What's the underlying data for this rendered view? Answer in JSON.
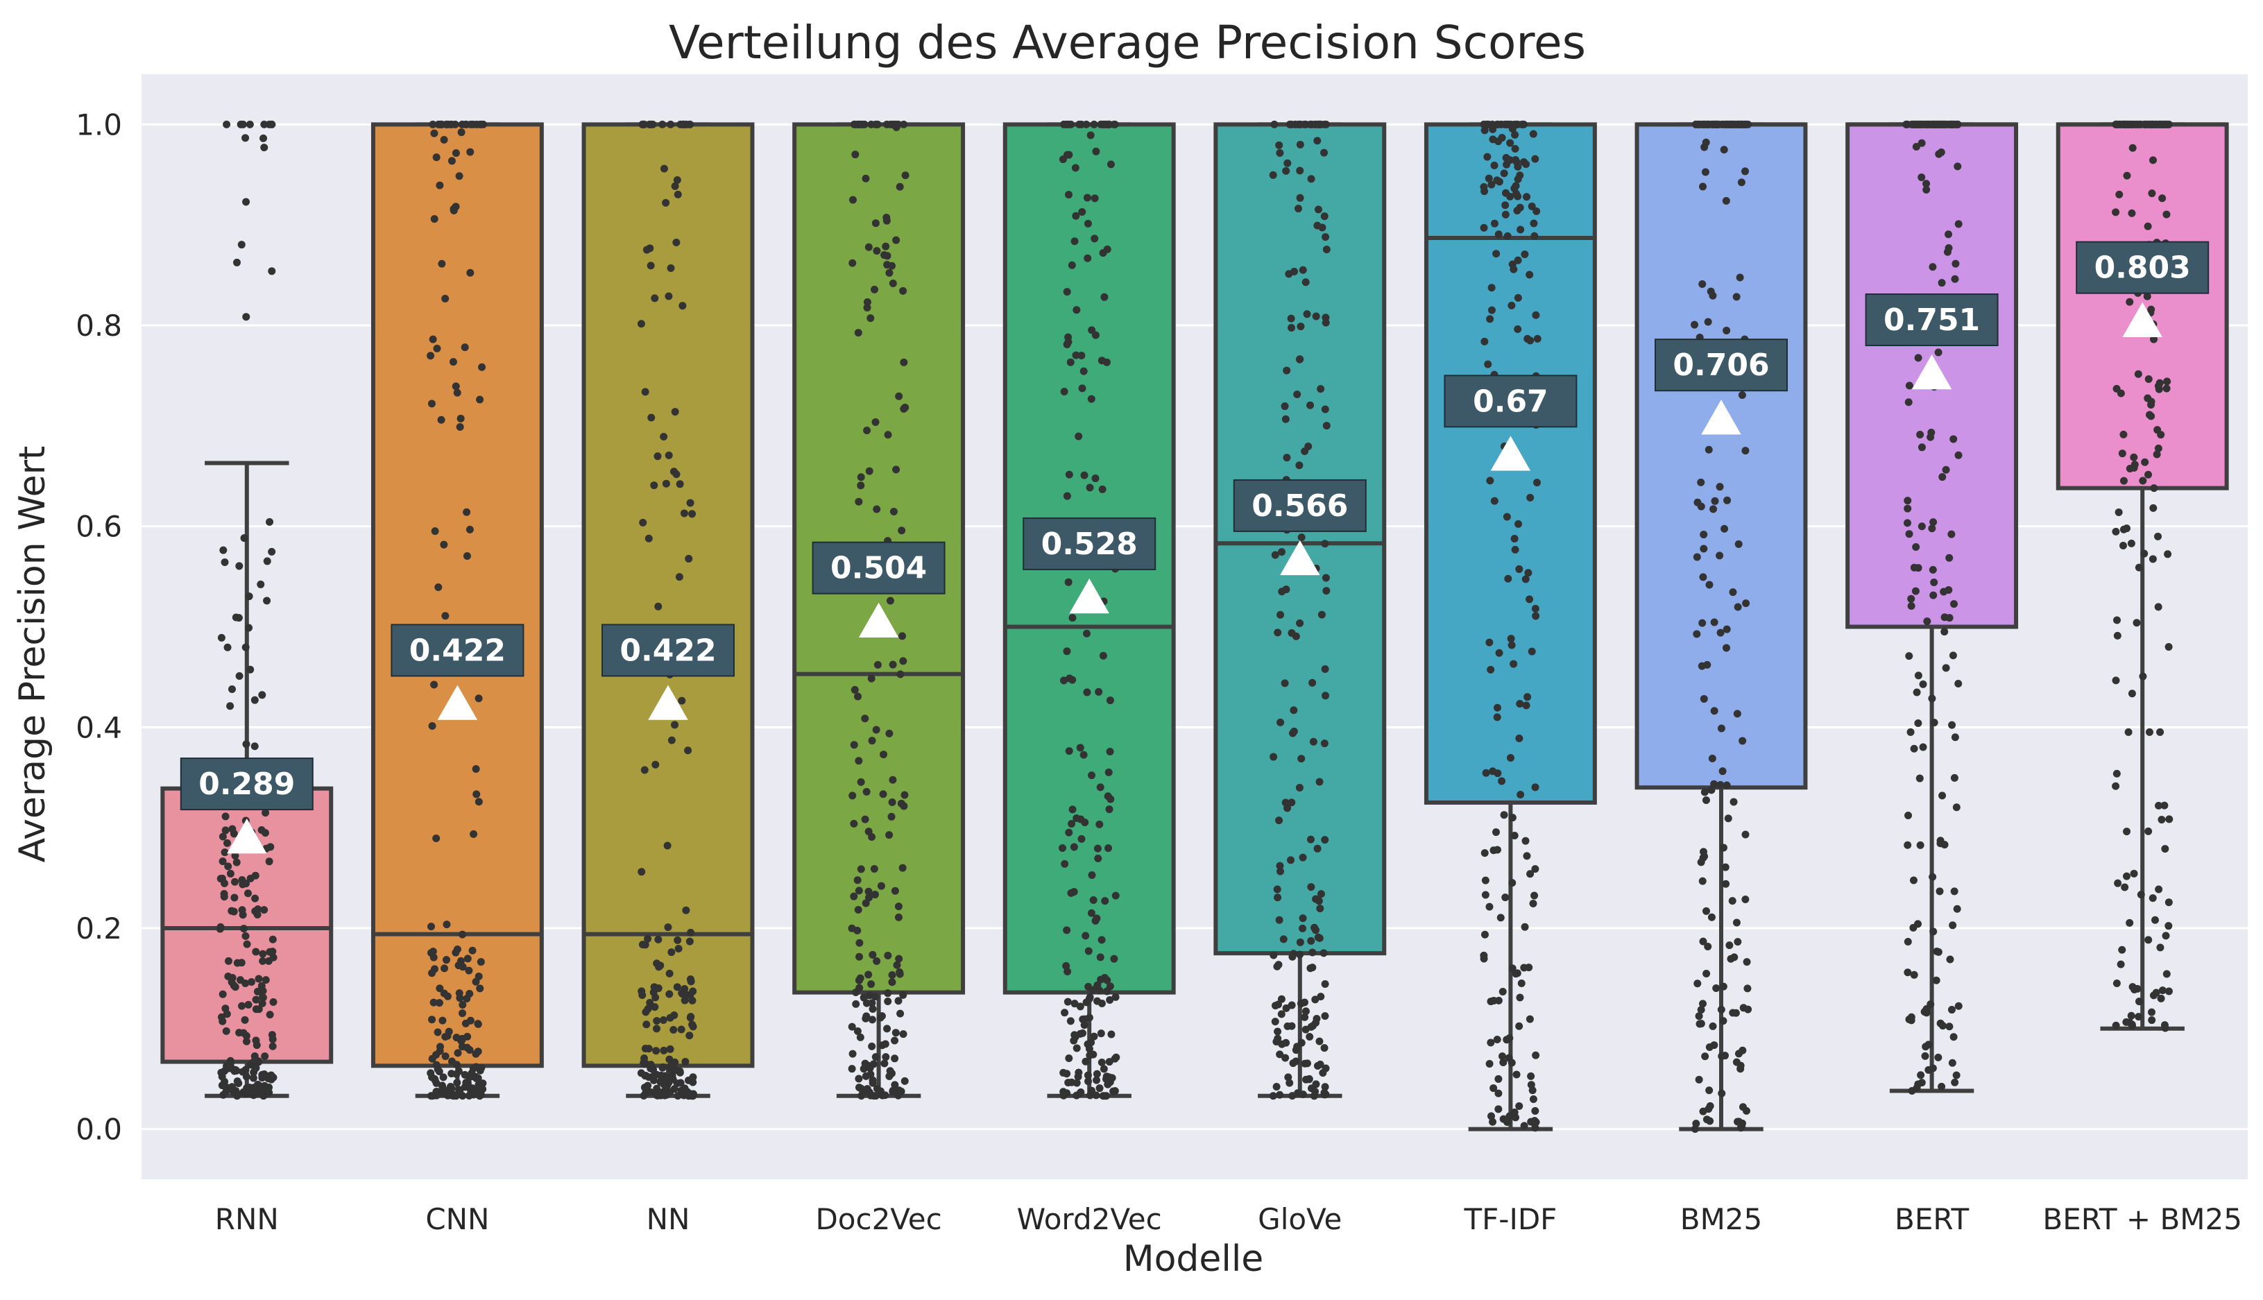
{
  "chart_data": {
    "type": "box",
    "title": "Verteilung des Average Precision Scores",
    "xlabel": "Modelle",
    "ylabel": "Average Precision Wert",
    "ylim": [
      -0.05,
      1.05
    ],
    "yticks": [
      0.0,
      0.2,
      0.4,
      0.6,
      0.8,
      1.0
    ],
    "ytick_labels": [
      "0.0",
      "0.2",
      "0.4",
      "0.6",
      "0.8",
      "1.0"
    ],
    "grid": true,
    "categories": [
      "RNN",
      "CNN",
      "NN",
      "Doc2Vec",
      "Word2Vec",
      "GloVe",
      "TF-IDF",
      "BM25",
      "BERT",
      "BERT + BM25"
    ],
    "colors": [
      "#e8919f",
      "#d98f46",
      "#a89c3e",
      "#7ca745",
      "#3fab79",
      "#44a8a4",
      "#45a7c4",
      "#8faceb",
      "#cb94e7",
      "#ea8fcb"
    ],
    "boxes": [
      {
        "name": "RNN",
        "whisker_low": 0.033,
        "q1": 0.067,
        "median": 0.2,
        "q3": 0.339,
        "whisker_high": 0.663,
        "mean": 0.289,
        "mean_label": "0.289"
      },
      {
        "name": "CNN",
        "whisker_low": 0.033,
        "q1": 0.063,
        "median": 0.194,
        "q3": 1.0,
        "whisker_high": 1.0,
        "mean": 0.422,
        "mean_label": "0.422"
      },
      {
        "name": "NN",
        "whisker_low": 0.033,
        "q1": 0.063,
        "median": 0.194,
        "q3": 1.0,
        "whisker_high": 1.0,
        "mean": 0.422,
        "mean_label": "0.422"
      },
      {
        "name": "Doc2Vec",
        "whisker_low": 0.033,
        "q1": 0.136,
        "median": 0.453,
        "q3": 1.0,
        "whisker_high": 1.0,
        "mean": 0.504,
        "mean_label": "0.504"
      },
      {
        "name": "Word2Vec",
        "whisker_low": 0.033,
        "q1": 0.136,
        "median": 0.5,
        "q3": 1.0,
        "whisker_high": 1.0,
        "mean": 0.528,
        "mean_label": "0.528"
      },
      {
        "name": "GloVe",
        "whisker_low": 0.033,
        "q1": 0.175,
        "median": 0.583,
        "q3": 1.0,
        "whisker_high": 1.0,
        "mean": 0.566,
        "mean_label": "0.566"
      },
      {
        "name": "TF-IDF",
        "whisker_low": 0.0,
        "q1": 0.325,
        "median": 0.887,
        "q3": 1.0,
        "whisker_high": 1.0,
        "mean": 0.67,
        "mean_label": "0.67"
      },
      {
        "name": "BM25",
        "whisker_low": 0.0,
        "q1": 0.34,
        "median": 1.0,
        "q3": 1.0,
        "whisker_high": 1.0,
        "mean": 0.706,
        "mean_label": "0.706"
      },
      {
        "name": "BERT",
        "whisker_low": 0.038,
        "q1": 0.5,
        "median": 1.0,
        "q3": 1.0,
        "whisker_high": 1.0,
        "mean": 0.751,
        "mean_label": "0.751"
      },
      {
        "name": "BERT + BM25",
        "whisker_low": 0.1,
        "q1": 0.638,
        "median": 1.0,
        "q3": 1.0,
        "whisker_high": 1.0,
        "mean": 0.803,
        "mean_label": "0.803"
      }
    ],
    "point_color": "#333333",
    "box_edge_color": "#3f3f3f",
    "background_color": "#eaeaf2",
    "grid_color": "#ffffff",
    "mean_marker_color": "#ffffff",
    "mean_label_bg": "#3d5866"
  }
}
